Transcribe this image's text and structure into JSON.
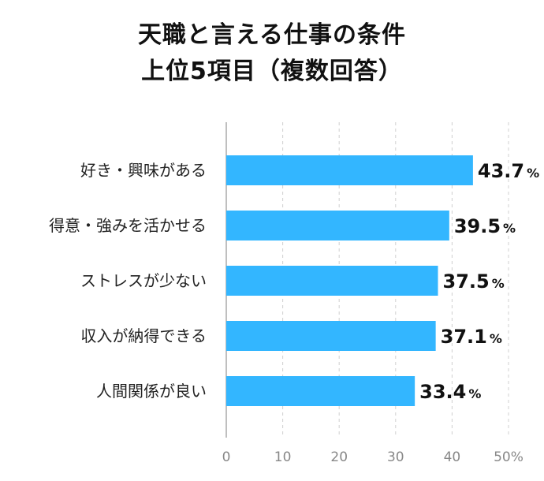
{
  "title": {
    "line1": "天職と言える仕事の条件",
    "line2": "上位5項目（複数回答）"
  },
  "chart_data": {
    "type": "bar",
    "orientation": "horizontal",
    "title": "天職と言える仕事の条件 上位5項目（複数回答）",
    "categories": [
      "好き・興味がある",
      "得意・強みを活かせる",
      "ストレスが少ない",
      "収入が納得できる",
      "人間関係が良い"
    ],
    "values": [
      43.7,
      39.5,
      37.5,
      37.1,
      33.4
    ],
    "value_unit": "%",
    "xlim": [
      0,
      50
    ],
    "ticks": [
      "0",
      "10",
      "20",
      "30",
      "40",
      "50%"
    ],
    "grid": true,
    "bar_color": "#33b6ff"
  }
}
